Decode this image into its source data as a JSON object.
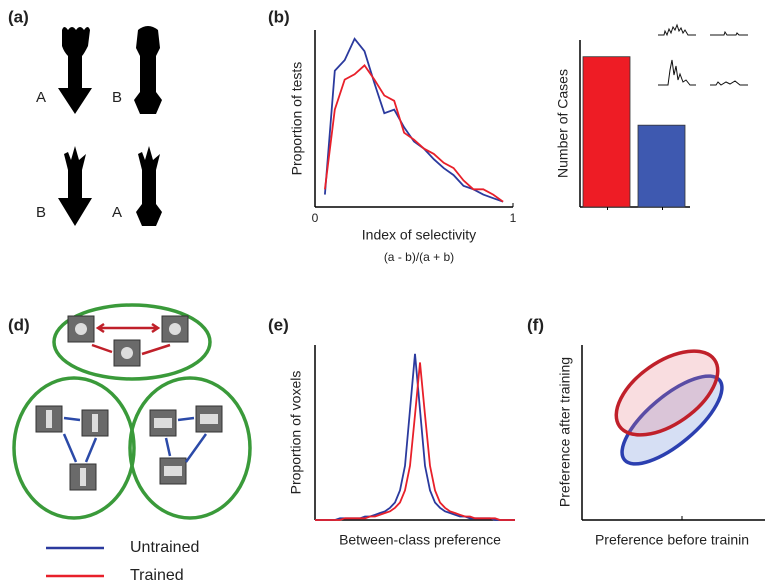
{
  "panel_labels": [
    "(a)",
    "(b)",
    "(d)",
    "(e)",
    "(f)"
  ],
  "shape_letters": [
    "A",
    "B",
    "B",
    "A"
  ],
  "panel_f": {
    "xlabel": "Preference before trainin",
    "ylabel": "Preference after training"
  },
  "chart_data": [
    {
      "type": "line",
      "xlabel": "Index of selectivity",
      "xlabel2": "(a - b)/(a + b)",
      "ylabel": "Proportion of tests",
      "x": [
        0.05,
        0.1,
        0.15,
        0.2,
        0.25,
        0.3,
        0.35,
        0.4,
        0.45,
        0.5,
        0.55,
        0.6,
        0.65,
        0.7,
        0.75,
        0.8,
        0.85,
        0.9,
        0.95
      ],
      "xlim": [
        0,
        1
      ],
      "xticks": [
        0,
        1
      ],
      "ylim": [
        0,
        1
      ],
      "series": [
        {
          "color": "#2b3a9e",
          "values": [
            0.07,
            0.77,
            0.83,
            0.95,
            0.88,
            0.7,
            0.53,
            0.55,
            0.45,
            0.37,
            0.33,
            0.27,
            0.22,
            0.18,
            0.12,
            0.1,
            0.07,
            0.05,
            0.03
          ]
        },
        {
          "color": "#e8202a",
          "values": [
            0.1,
            0.55,
            0.72,
            0.75,
            0.8,
            0.72,
            0.63,
            0.6,
            0.42,
            0.38,
            0.33,
            0.3,
            0.25,
            0.22,
            0.15,
            0.1,
            0.1,
            0.07,
            0.03
          ]
        }
      ]
    },
    {
      "type": "bar",
      "ylabel": "Number of Cases",
      "categories": [
        null,
        null
      ],
      "values": [
        0.9,
        0.49
      ],
      "colors": [
        "#ee1c25",
        "#3e59b0"
      ],
      "ylim": [
        0,
        1
      ]
    },
    {
      "type": "line",
      "xlabel": "Between-class preference",
      "ylabel": "Proportion of voxels",
      "x": [
        -1,
        -0.95,
        -0.9,
        -0.85,
        -0.8,
        -0.75,
        -0.7,
        -0.65,
        -0.6,
        -0.55,
        -0.5,
        -0.45,
        -0.4,
        -0.35,
        -0.3,
        -0.25,
        -0.2,
        -0.15,
        -0.1,
        -0.05,
        0,
        0.05,
        0.1,
        0.15,
        0.2,
        0.25,
        0.3,
        0.35,
        0.4,
        0.45,
        0.5,
        0.55,
        0.6,
        0.65,
        0.7,
        0.75,
        0.8,
        0.85,
        0.9,
        0.95,
        1
      ],
      "xlim": [
        -1,
        1
      ],
      "ylim": [
        0,
        1
      ],
      "series": [
        {
          "name": "Untrained",
          "color": "#2b3a9e",
          "values": [
            0,
            0,
            0,
            0,
            0,
            0.01,
            0.01,
            0.01,
            0.01,
            0.01,
            0.02,
            0.02,
            0.03,
            0.04,
            0.05,
            0.07,
            0.1,
            0.17,
            0.31,
            0.63,
            0.95,
            0.63,
            0.31,
            0.17,
            0.1,
            0.07,
            0.05,
            0.04,
            0.03,
            0.02,
            0.02,
            0.01,
            0.01,
            0.01,
            0.01,
            0.01,
            0,
            0,
            0,
            0,
            0
          ]
        },
        {
          "name": "Trained",
          "color": "#e8202a",
          "values": [
            0,
            0,
            0,
            0,
            0,
            0,
            0.01,
            0.01,
            0.01,
            0.01,
            0.01,
            0.02,
            0.02,
            0.03,
            0.04,
            0.05,
            0.07,
            0.1,
            0.17,
            0.31,
            0.6,
            0.9,
            0.6,
            0.31,
            0.17,
            0.1,
            0.07,
            0.05,
            0.04,
            0.03,
            0.02,
            0.02,
            0.01,
            0.01,
            0.01,
            0.01,
            0.01,
            0,
            0,
            0,
            0
          ]
        }
      ]
    }
  ]
}
